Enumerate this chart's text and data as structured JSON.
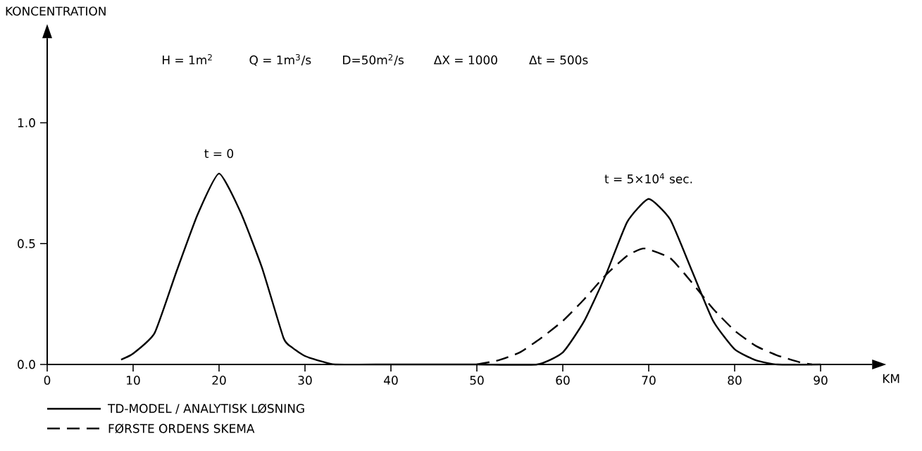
{
  "chart_data": {
    "type": "line",
    "xlabel": "KM",
    "ylabel": "KONCENTRATION",
    "xlim": [
      0,
      96
    ],
    "ylim": [
      0,
      1.35
    ],
    "xticks": [
      0,
      10,
      20,
      30,
      40,
      50,
      60,
      70,
      80,
      90
    ],
    "yticks": [
      {
        "value": 0,
        "label": "0.0"
      },
      {
        "value": 0.5,
        "label": "0.5"
      },
      {
        "value": 1,
        "label": "1.0"
      }
    ],
    "grid": false,
    "legend": "bottom left",
    "annotations": [
      "H = 1m$^{2}$",
      "Q = 1m$^{3}$/s",
      "D=50m$^{2}$/s",
      "ΔX = 1000",
      "Δt = 500s",
      {
        "text": "t = 0",
        "x": 20,
        "y": 0.79
      },
      {
        "text": "t = 5×10$^{4}$ sec.",
        "x": 70,
        "y": 0.685
      }
    ],
    "series": [
      {
        "name": "TD-MODEL / ANALYTISK LØSNING",
        "color": "#000000",
        "line_style": "solid",
        "x": [
          8.6,
          10,
          12.5,
          15,
          17.5,
          20,
          22.5,
          25,
          27.5,
          28.5,
          30,
          32,
          33.5,
          40,
          50,
          57,
          60,
          62.5,
          65,
          67.5,
          70,
          72.5,
          75,
          77.5,
          80,
          82.5,
          85,
          90
        ],
        "values": [
          0.02,
          0.045,
          0.13,
          0.38,
          0.62,
          0.79,
          0.63,
          0.4,
          0.11,
          0.07,
          0.035,
          0.012,
          0,
          0,
          0,
          0,
          0.05,
          0.18,
          0.37,
          0.59,
          0.685,
          0.6,
          0.39,
          0.18,
          0.063,
          0.017,
          0,
          0
        ]
      },
      {
        "name": "FØRSTE ORDENS SKEMA",
        "color": "#000000",
        "line_style": "dashed",
        "x": [
          50,
          52.5,
          55,
          57.5,
          60,
          62.5,
          65,
          67.5,
          69.5,
          72.5,
          75,
          77.5,
          80,
          82.5,
          85,
          87.5,
          89
        ],
        "values": [
          0,
          0.017,
          0.05,
          0.11,
          0.18,
          0.27,
          0.37,
          0.45,
          0.48,
          0.44,
          0.34,
          0.23,
          0.14,
          0.076,
          0.037,
          0.01,
          0
        ]
      }
    ]
  }
}
